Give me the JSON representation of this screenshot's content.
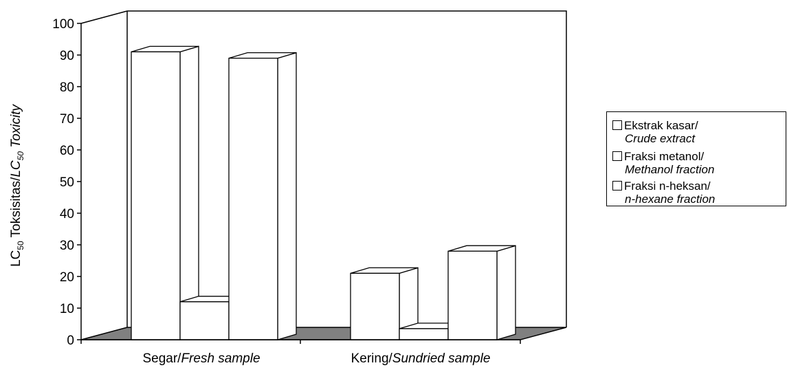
{
  "chart_data": {
    "type": "bar",
    "style": "3d-clustered-columns",
    "categories": [
      {
        "plain": "Segar/",
        "italic": "Fresh sample"
      },
      {
        "plain": "Kering/",
        "italic": "Sundried sample"
      }
    ],
    "series": [
      {
        "name_plain": "Ekstrak kasar/",
        "name_italic": "Crude extract",
        "values": [
          91,
          21
        ]
      },
      {
        "name_plain": "Fraksi metanol/",
        "name_italic": "Methanol fraction",
        "values": [
          12,
          3.5
        ]
      },
      {
        "name_plain": "Fraksi n-heksan/",
        "name_italic": "n-hexane fraction",
        "values": [
          89,
          28
        ]
      }
    ],
    "ylabel": {
      "part1": "LC",
      "sub1": "50",
      "part2": " Toksisitas/",
      "part3": "LC",
      "sub2": "50",
      "part4": " Toxicity"
    },
    "ylim": [
      0,
      100
    ],
    "yticks": [
      "0",
      "10",
      "20",
      "30",
      "40",
      "50",
      "60",
      "70",
      "80",
      "90",
      "100"
    ],
    "grid": false,
    "legend_position": "right",
    "colors": {
      "bar_fill": "#ffffff",
      "floor": "#808080",
      "outline": "#000000"
    }
  }
}
